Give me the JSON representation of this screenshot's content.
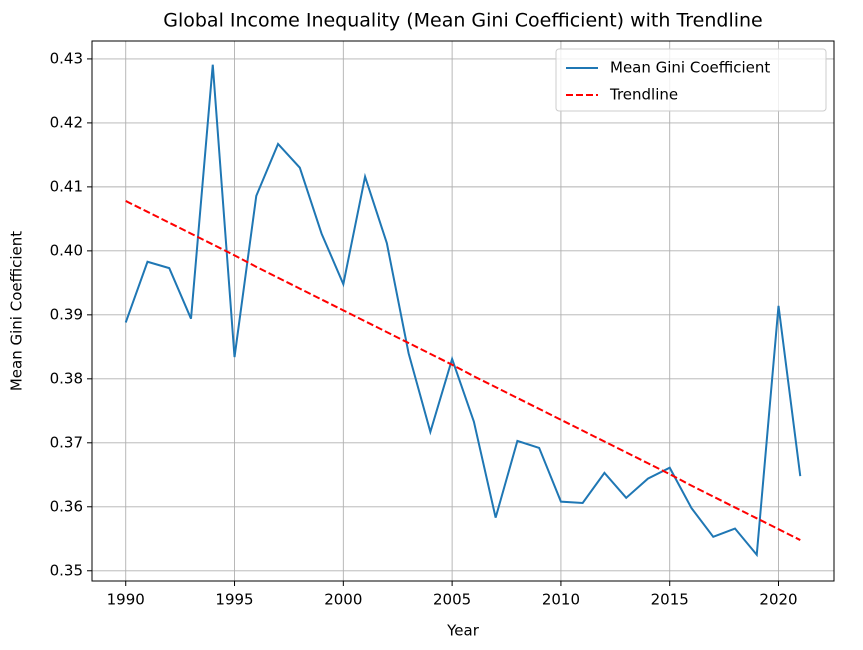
{
  "chart_data": {
    "type": "line",
    "title": "Global Income Inequality (Mean Gini Coefficient) with Trendline",
    "x_label": "Year",
    "y_label": "Mean Gini Coefficient",
    "x": [
      1990,
      1991,
      1992,
      1993,
      1994,
      1995,
      1996,
      1997,
      1998,
      1999,
      2000,
      2001,
      2002,
      2003,
      2004,
      2005,
      2006,
      2007,
      2008,
      2009,
      2010,
      2011,
      2012,
      2013,
      2014,
      2015,
      2016,
      2017,
      2018,
      2019,
      2020,
      2021
    ],
    "series": [
      {
        "name": "Mean Gini Coefficient",
        "color": "#1f77b4",
        "dash": "solid",
        "values": [
          0.3888,
          0.3983,
          0.3973,
          0.3894,
          0.4291,
          0.3834,
          0.4086,
          0.4167,
          0.413,
          0.4027,
          0.3948,
          0.4116,
          0.4012,
          0.384,
          0.3717,
          0.3831,
          0.3733,
          0.3583,
          0.3703,
          0.3692,
          0.3608,
          0.3606,
          0.3653,
          0.3614,
          0.3644,
          0.3661,
          0.3598,
          0.3553,
          0.3566,
          0.3525,
          0.3914,
          0.3648
        ]
      },
      {
        "name": "Trendline",
        "color": "#ff0000",
        "dash": "dashed",
        "values": [
          0.4078,
          0.4061,
          0.4044,
          0.4027,
          0.401,
          0.3993,
          0.3975,
          0.3958,
          0.3941,
          0.3924,
          0.3907,
          0.389,
          0.3873,
          0.3856,
          0.3839,
          0.3822,
          0.3804,
          0.3787,
          0.377,
          0.3753,
          0.3736,
          0.3719,
          0.3702,
          0.3685,
          0.3668,
          0.3651,
          0.3633,
          0.3616,
          0.3599,
          0.3582,
          0.3565,
          0.3548
        ]
      }
    ],
    "xlim": [
      1988.45,
      2022.55
    ],
    "xticks": [
      1990,
      1995,
      2000,
      2005,
      2010,
      2015,
      2020
    ],
    "ylim": [
      0.3484,
      0.4328
    ],
    "yticks": [
      0.35,
      0.36,
      0.37,
      0.38,
      0.39,
      {
        "value": 0.4,
        "label": "0.40"
      },
      0.41,
      0.42,
      0.43
    ],
    "grid": true,
    "legend": "upper right"
  }
}
